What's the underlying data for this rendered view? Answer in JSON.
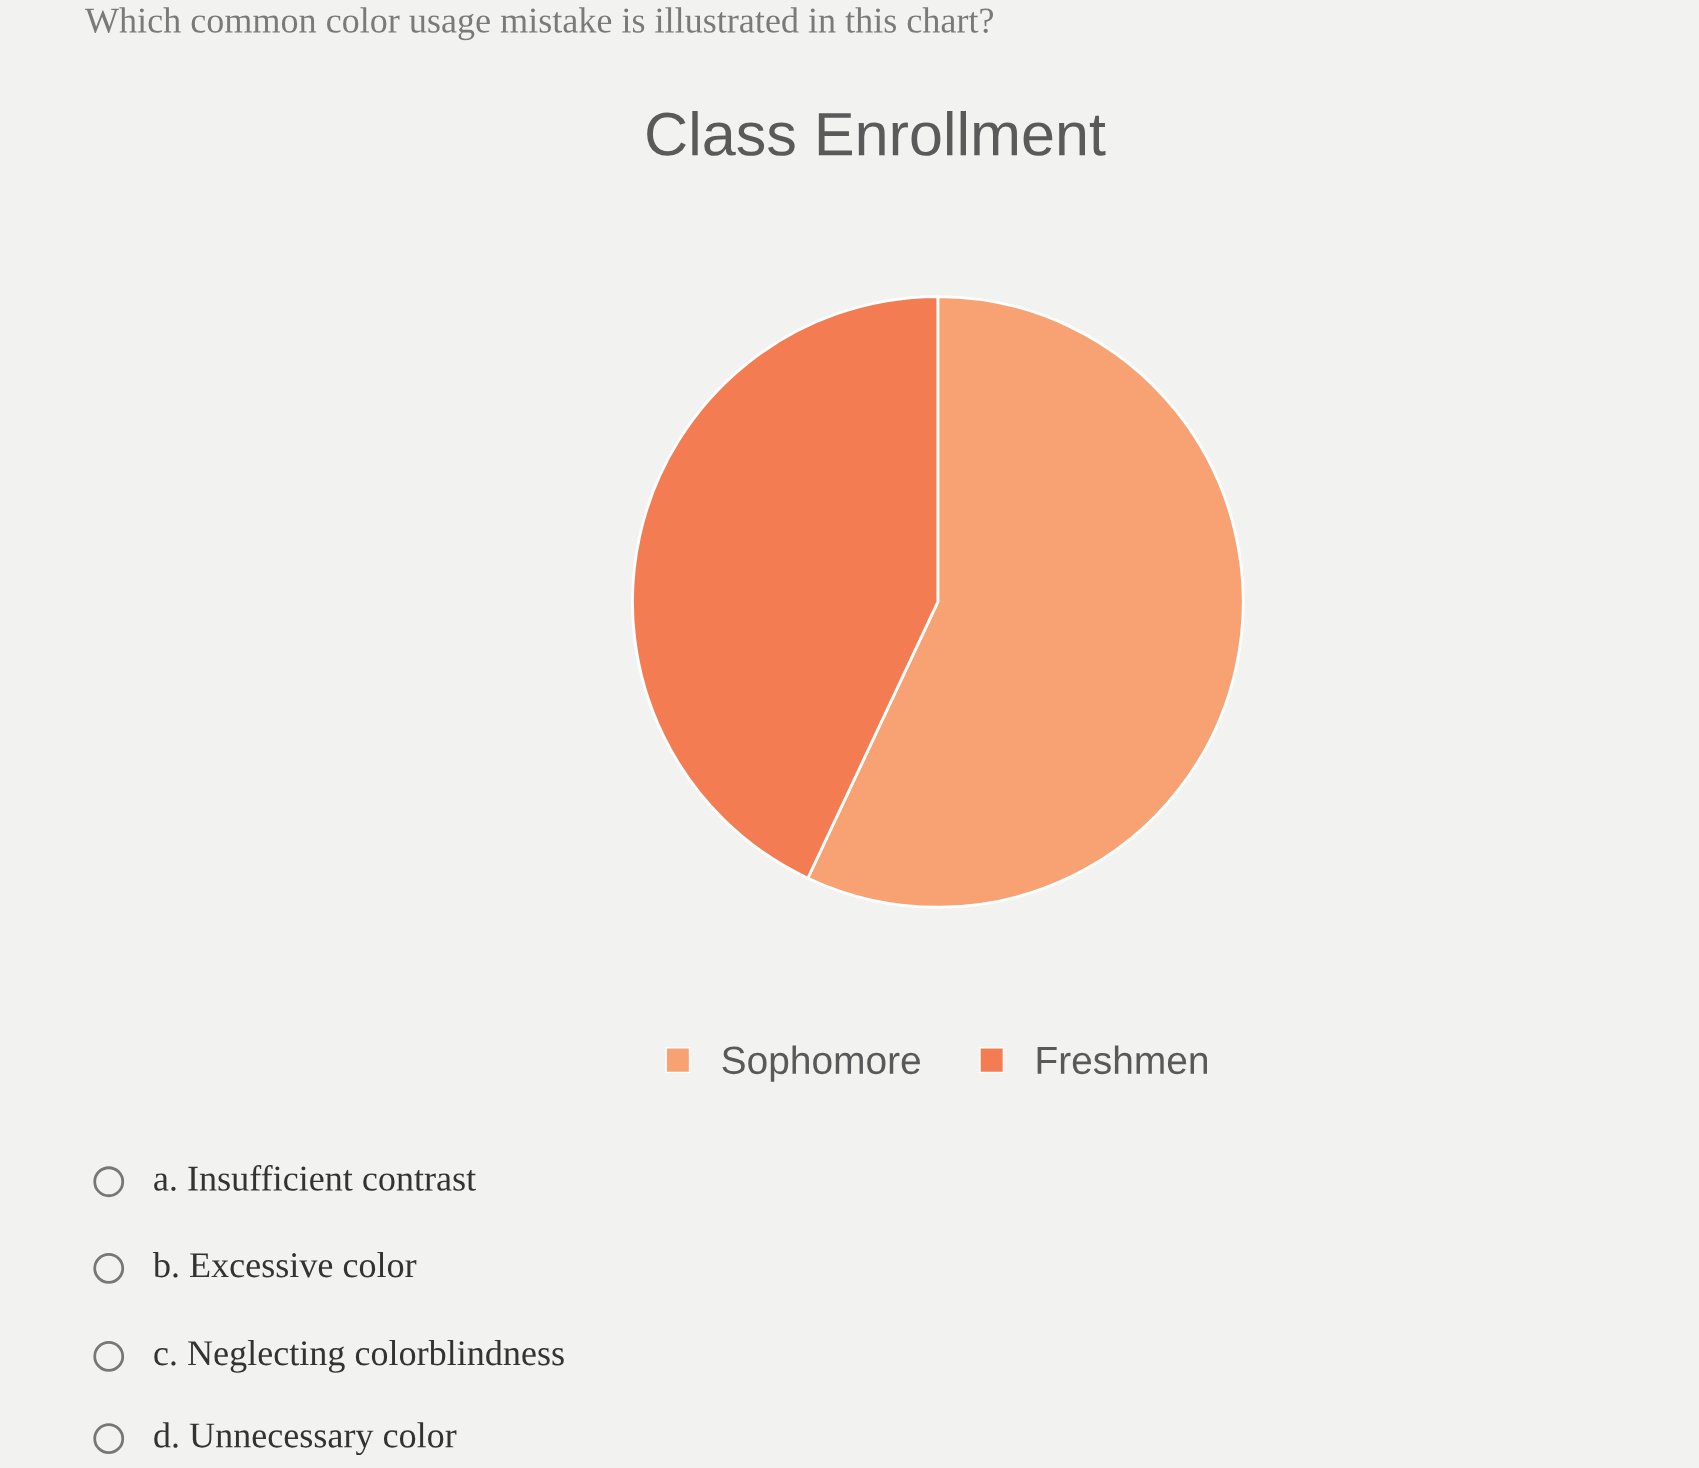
{
  "chart_data": {
    "type": "pie",
    "title": "Class Enrollment",
    "categories": [
      "Sophomore",
      "Freshmen"
    ],
    "values": [
      57,
      43
    ],
    "colors": [
      "#f8a274",
      "#f47c52"
    ],
    "legend": "bottom",
    "annotations": [
      "Which common color usage mistake is illustrated in this chart?",
      "a. Insufficient contrast",
      "b. Excessive color",
      "c. Neglecting colorblindness",
      "d. Unnecessary color"
    ]
  }
}
